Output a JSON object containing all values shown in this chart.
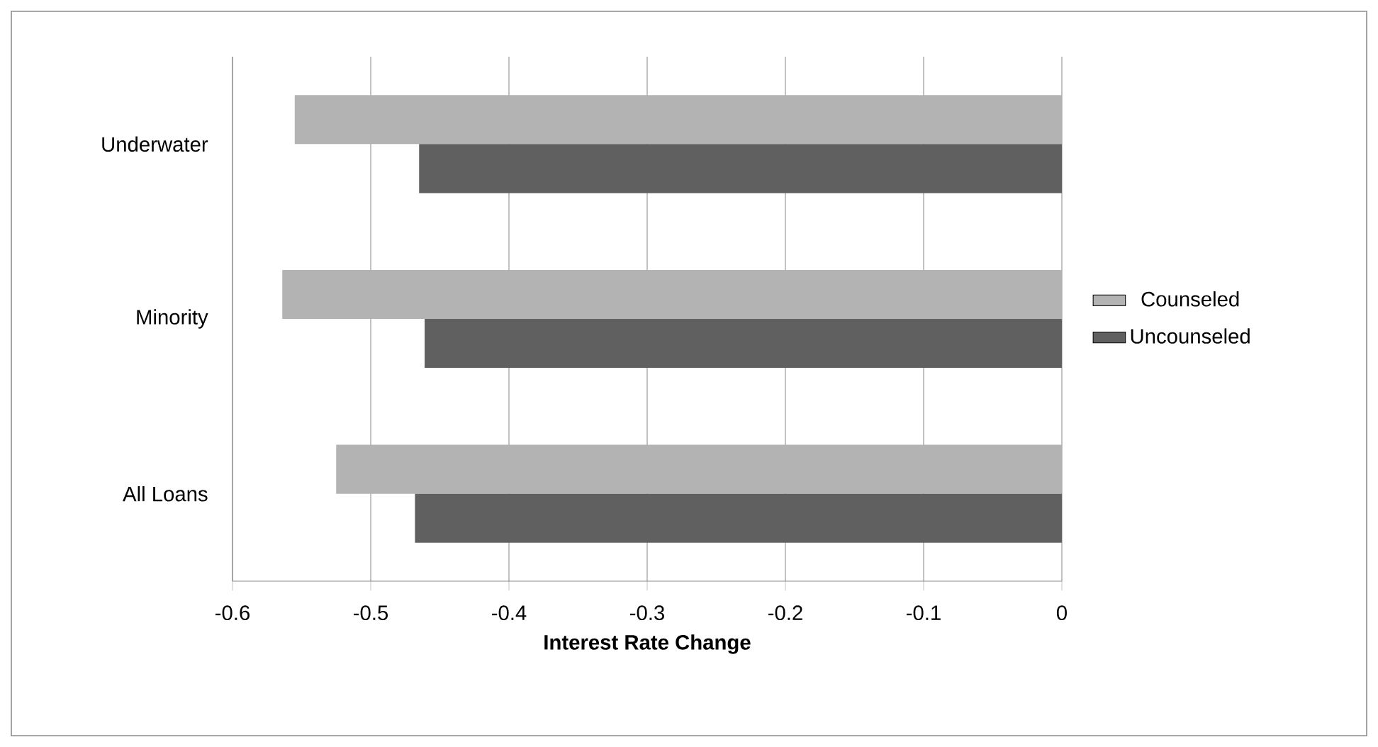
{
  "chart_data": {
    "type": "bar",
    "orientation": "horizontal",
    "xlabel": "Interest Rate Change",
    "categories": [
      "Underwater",
      "Minority",
      "All Loans"
    ],
    "series": [
      {
        "name": "Counseled",
        "color": "#b3b3b3",
        "values": [
          -0.555,
          -0.564,
          -0.525
        ]
      },
      {
        "name": "Uncounseled",
        "color": "#606060",
        "values": [
          -0.465,
          -0.461,
          -0.468
        ]
      }
    ],
    "xlim": [
      -0.6,
      0
    ],
    "xticks": [
      -0.6,
      -0.5,
      -0.4,
      -0.3,
      -0.2,
      -0.1,
      0
    ],
    "grid": "x",
    "legend": "right"
  }
}
